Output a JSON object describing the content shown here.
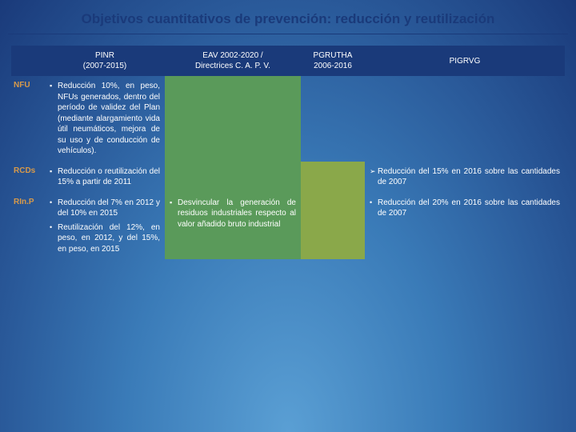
{
  "title": "Objetivos cuantitativos de prevención: reducción y reutilización",
  "colors": {
    "background_gradient_inner": "#5a9fd4",
    "background_gradient_outer": "#1a3a7a",
    "header_bg": "#1a3a7a",
    "header_text": "#ffffff",
    "rowlabel_color": "#d89a4a",
    "cell_text": "#ffffff",
    "green_cell": "#5a9a5a",
    "olive_cell": "#8aa84a",
    "title_color": "#1a3a7a"
  },
  "columns": {
    "c0": "",
    "c1_line1": "PINR",
    "c1_line2": "(2007-2015)",
    "c2_line1": "EAV 2002-2020 /",
    "c2_line2": "Directrices C. A. P. V.",
    "c3_line1": "PGRUTHA",
    "c3_line2": "2006-2016",
    "c4": "PIGRVG"
  },
  "rows": {
    "r1": {
      "label": "NFU",
      "pinr": "Reducción 10%, en peso, NFUs generados, dentro del período de validez del Plan (mediante alargamiento vida útil neumáticos, mejora de su uso y de conducción de vehículos).",
      "eav": "",
      "pgrutha": "",
      "pigrvg": ""
    },
    "r2": {
      "label": "RCDs",
      "pinr": "Reducción o reutilización del 15% a partir de 2011",
      "eav": "",
      "pgrutha": "",
      "pigrvg": "Reducción del 15% en 2016 sobre las cantidades de 2007"
    },
    "r3": {
      "label": "RIn.P",
      "pinr_a": "Reducción del 7% en 2012 y del 10% en 2015",
      "pinr_b": "Reutilización del 12%, en peso, en 2012, y del 15%, en peso, en 2015",
      "eav": "Desvincular la generación de residuos industriales respecto al valor añadido bruto industrial",
      "pgrutha": "",
      "pigrvg": "Reducción del 20% en 2016 sobre las cantidades de 2007"
    }
  },
  "bullets": {
    "square": "▪",
    "arrow": "➢",
    "dot": "•"
  }
}
